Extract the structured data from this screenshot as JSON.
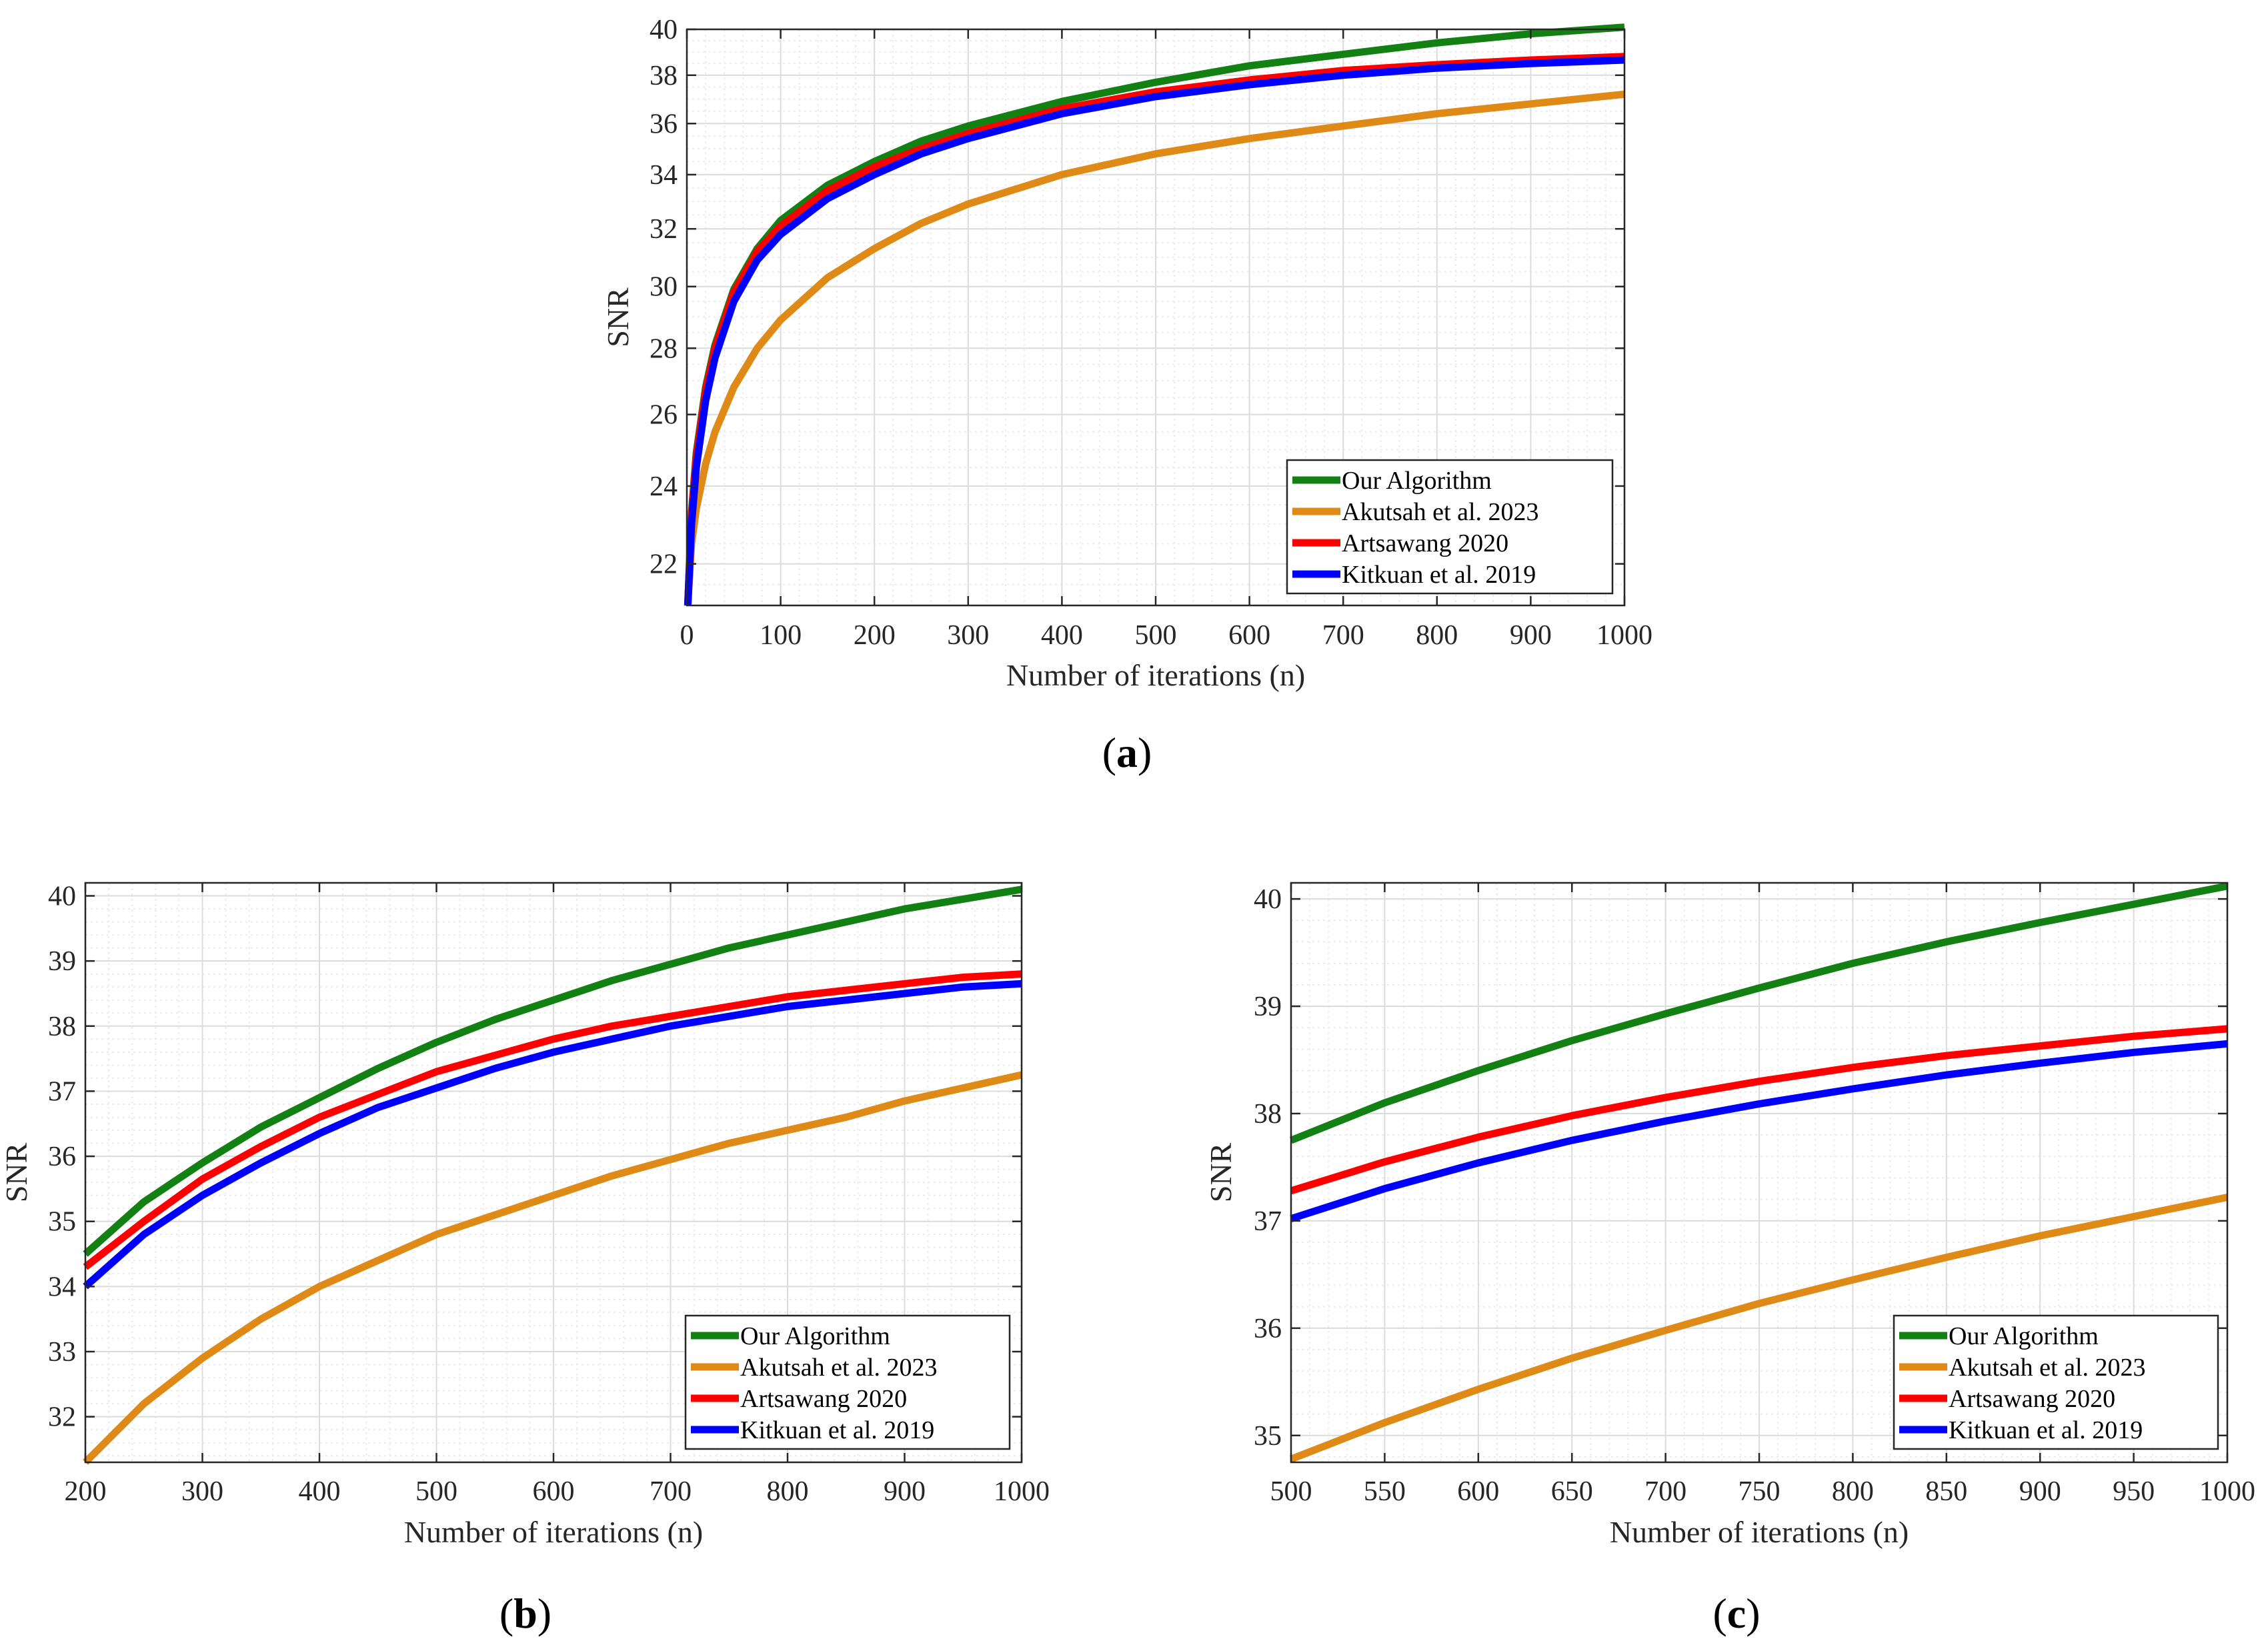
{
  "colors": {
    "our": "#138013",
    "akutsah": "#df8a16",
    "artsawang": "#ff0000",
    "kitkuan": "#0000ff",
    "axis": "#262626",
    "grid": "#dcdcdc",
    "minor_grid": "#ececec"
  },
  "chart_data": [
    {
      "id": "a",
      "type": "line",
      "caption": "a",
      "xlabel": "Number of iterations (n)",
      "ylabel": "SNR",
      "xlim": [
        0,
        1000
      ],
      "ylim": [
        21,
        40
      ],
      "yscale": "log",
      "xticks": [
        0,
        100,
        200,
        300,
        400,
        500,
        600,
        700,
        800,
        900,
        1000
      ],
      "xtick_labels": [
        "0",
        "100",
        "200",
        "300",
        "400",
        "500",
        "600",
        "700",
        "800",
        "900",
        "1000"
      ],
      "yticks": [
        22,
        24,
        26,
        28,
        30,
        32,
        34,
        36,
        38,
        40
      ],
      "ytick_labels": [
        "22",
        "24",
        "26",
        "28",
        "30",
        "32",
        "34",
        "36",
        "38",
        "40"
      ],
      "grid": true,
      "legend_position": "bottom-right",
      "legend": [
        "Our Algorithm",
        "Akutsah et al. 2023",
        "Artsawang 2020",
        "Kitkuan et al. 2019"
      ],
      "series": [
        {
          "name": "Our Algorithm",
          "color_key": "our",
          "x": [
            1,
            5,
            10,
            20,
            30,
            50,
            75,
            100,
            150,
            200,
            250,
            300,
            400,
            500,
            600,
            700,
            800,
            900,
            1000
          ],
          "y": [
            21.0,
            23.3,
            24.9,
            26.8,
            28.1,
            29.9,
            31.3,
            32.3,
            33.6,
            34.5,
            35.3,
            35.9,
            36.9,
            37.7,
            38.4,
            38.9,
            39.4,
            39.8,
            40.1
          ]
        },
        {
          "name": "Akutsah et al. 2023",
          "color_key": "akutsah",
          "x": [
            1,
            5,
            10,
            20,
            30,
            50,
            75,
            100,
            150,
            200,
            250,
            300,
            400,
            500,
            600,
            700,
            800,
            900,
            1000
          ],
          "y": [
            21.0,
            22.5,
            23.4,
            24.6,
            25.5,
            26.8,
            28.0,
            28.9,
            30.3,
            31.3,
            32.2,
            32.9,
            34.0,
            34.8,
            35.4,
            35.9,
            36.4,
            36.8,
            37.2
          ]
        },
        {
          "name": "Artsawang 2020",
          "color_key": "artsawang",
          "x": [
            1,
            5,
            10,
            20,
            30,
            50,
            75,
            100,
            150,
            200,
            250,
            300,
            400,
            500,
            600,
            700,
            800,
            900,
            1000
          ],
          "y": [
            21.0,
            23.2,
            24.8,
            26.7,
            28.0,
            29.8,
            31.2,
            32.1,
            33.4,
            34.3,
            35.0,
            35.6,
            36.6,
            37.3,
            37.8,
            38.2,
            38.45,
            38.65,
            38.8
          ]
        },
        {
          "name": "Kitkuan et al. 2019",
          "color_key": "kitkuan",
          "x": [
            1,
            5,
            10,
            20,
            30,
            50,
            75,
            100,
            150,
            200,
            250,
            300,
            400,
            500,
            600,
            700,
            800,
            900,
            1000
          ],
          "y": [
            21.0,
            23.0,
            24.5,
            26.4,
            27.7,
            29.5,
            30.9,
            31.8,
            33.1,
            34.0,
            34.8,
            35.4,
            36.4,
            37.1,
            37.6,
            38.0,
            38.3,
            38.5,
            38.65
          ]
        }
      ]
    },
    {
      "id": "b",
      "type": "line",
      "caption": "b",
      "xlabel": "Number of iterations (n)",
      "ylabel": "SNR",
      "xlim": [
        200,
        1000
      ],
      "ylim": [
        31.3,
        40.2
      ],
      "yscale": "linear",
      "xticks": [
        200,
        300,
        400,
        500,
        600,
        700,
        800,
        900,
        1000
      ],
      "xtick_labels": [
        "200",
        "300",
        "400",
        "500",
        "600",
        "700",
        "800",
        "900",
        "1000"
      ],
      "yticks": [
        32,
        33,
        34,
        35,
        36,
        37,
        38,
        39,
        40
      ],
      "ytick_labels": [
        "32",
        "33",
        "34",
        "35",
        "36",
        "37",
        "38",
        "39",
        "40"
      ],
      "grid": true,
      "legend_position": "bottom-right",
      "legend": [
        "Our Algorithm",
        "Akutsah et al. 2023",
        "Artsawang 2020",
        "Kitkuan et al. 2019"
      ],
      "series": [
        {
          "name": "Our Algorithm",
          "color_key": "our",
          "x": [
            200,
            250,
            300,
            350,
            400,
            450,
            500,
            550,
            600,
            650,
            700,
            750,
            800,
            850,
            900,
            950,
            1000
          ],
          "y": [
            34.5,
            35.3,
            35.9,
            36.45,
            36.9,
            37.35,
            37.75,
            38.1,
            38.4,
            38.7,
            38.95,
            39.2,
            39.4,
            39.6,
            39.8,
            39.95,
            40.1
          ]
        },
        {
          "name": "Akutsah et al. 2023",
          "color_key": "akutsah",
          "x": [
            200,
            250,
            300,
            350,
            400,
            450,
            500,
            550,
            600,
            650,
            700,
            750,
            800,
            850,
            900,
            950,
            1000
          ],
          "y": [
            31.3,
            32.2,
            32.9,
            33.5,
            34.0,
            34.4,
            34.8,
            35.1,
            35.4,
            35.7,
            35.95,
            36.2,
            36.4,
            36.6,
            36.85,
            37.05,
            37.25
          ]
        },
        {
          "name": "Artsawang 2020",
          "color_key": "artsawang",
          "x": [
            200,
            250,
            300,
            350,
            400,
            450,
            500,
            550,
            600,
            650,
            700,
            750,
            800,
            850,
            900,
            950,
            1000
          ],
          "y": [
            34.3,
            35.0,
            35.65,
            36.15,
            36.6,
            36.95,
            37.3,
            37.55,
            37.8,
            38.0,
            38.15,
            38.3,
            38.45,
            38.55,
            38.65,
            38.75,
            38.8
          ]
        },
        {
          "name": "Kitkuan et al. 2019",
          "color_key": "kitkuan",
          "x": [
            200,
            250,
            300,
            350,
            400,
            450,
            500,
            550,
            600,
            650,
            700,
            750,
            800,
            850,
            900,
            950,
            1000
          ],
          "y": [
            34.0,
            34.8,
            35.4,
            35.9,
            36.35,
            36.75,
            37.05,
            37.35,
            37.6,
            37.8,
            38.0,
            38.15,
            38.3,
            38.4,
            38.5,
            38.6,
            38.65
          ]
        }
      ]
    },
    {
      "id": "c",
      "type": "line",
      "caption": "c",
      "xlabel": "Number of iterations (n)",
      "ylabel": "SNR",
      "xlim": [
        500,
        1000
      ],
      "ylim": [
        34.75,
        40.15
      ],
      "yscale": "linear",
      "xticks": [
        500,
        550,
        600,
        650,
        700,
        750,
        800,
        850,
        900,
        950,
        1000
      ],
      "xtick_labels": [
        "500",
        "550",
        "600",
        "650",
        "700",
        "750",
        "800",
        "850",
        "900",
        "950",
        "1000"
      ],
      "yticks": [
        35,
        36,
        37,
        38,
        39,
        40
      ],
      "ytick_labels": [
        "35",
        "36",
        "37",
        "38",
        "39",
        "40"
      ],
      "grid": true,
      "legend_position": "bottom-right",
      "legend": [
        "Our Algorithm",
        "Akutsah et al. 2023",
        "Artsawang 2020",
        "Kitkuan et al. 2019"
      ],
      "series": [
        {
          "name": "Our Algorithm",
          "color_key": "our",
          "x": [
            500,
            550,
            600,
            650,
            700,
            750,
            800,
            850,
            900,
            950,
            1000
          ],
          "y": [
            37.75,
            38.1,
            38.4,
            38.68,
            38.93,
            39.17,
            39.4,
            39.6,
            39.78,
            39.95,
            40.12
          ]
        },
        {
          "name": "Akutsah et al. 2023",
          "color_key": "akutsah",
          "x": [
            500,
            550,
            600,
            650,
            700,
            750,
            800,
            850,
            900,
            950,
            1000
          ],
          "y": [
            34.78,
            35.12,
            35.43,
            35.72,
            35.98,
            36.23,
            36.45,
            36.66,
            36.86,
            37.04,
            37.22
          ]
        },
        {
          "name": "Artsawang 2020",
          "color_key": "artsawang",
          "x": [
            500,
            550,
            600,
            650,
            700,
            750,
            800,
            850,
            900,
            950,
            1000
          ],
          "y": [
            37.28,
            37.55,
            37.78,
            37.98,
            38.15,
            38.3,
            38.43,
            38.54,
            38.63,
            38.72,
            38.79
          ]
        },
        {
          "name": "Kitkuan et al. 2019",
          "color_key": "kitkuan",
          "x": [
            500,
            550,
            600,
            650,
            700,
            750,
            800,
            850,
            900,
            950,
            1000
          ],
          "y": [
            37.02,
            37.3,
            37.54,
            37.75,
            37.93,
            38.09,
            38.23,
            38.36,
            38.47,
            38.57,
            38.65
          ]
        }
      ]
    }
  ]
}
